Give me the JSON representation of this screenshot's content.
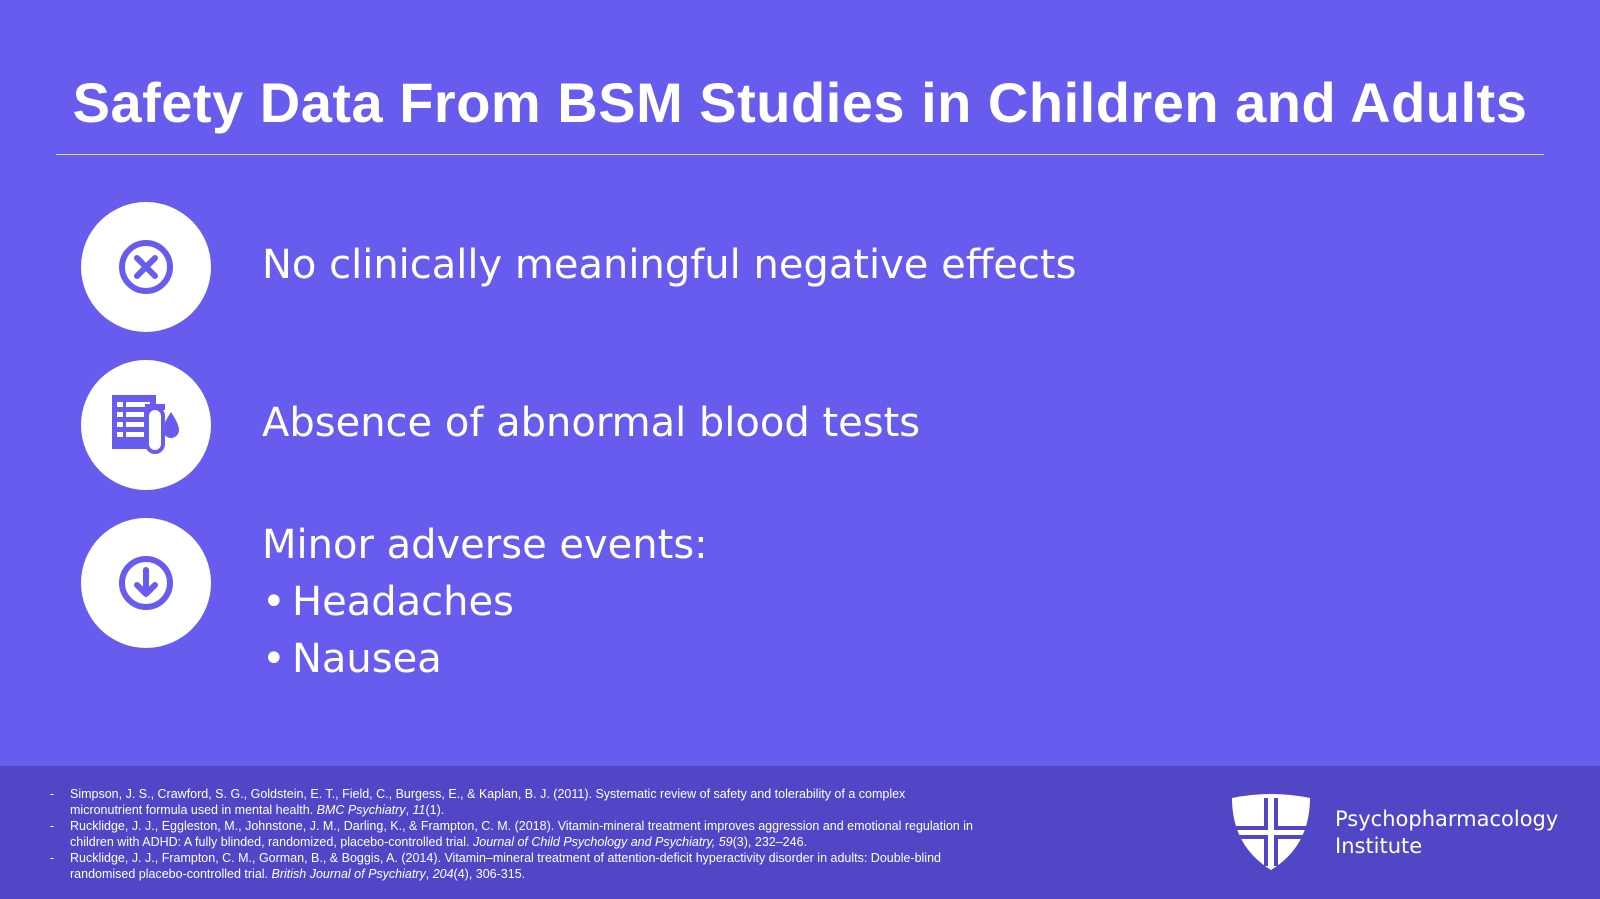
{
  "title": "Safety Data From BSM Studies in Children and Adults",
  "items": [
    {
      "text": "No clinically meaningful negative effects"
    },
    {
      "text": "Absence of abnormal blood tests"
    },
    {
      "text": "Minor adverse events:",
      "bullets": [
        "Headaches",
        "Nausea"
      ]
    }
  ],
  "references": [
    [
      {
        "text": "Simpson, J. S., Crawford, S. G., Goldstein, E. T., Field, C., Burgess, E., & Kaplan, B. J. (2011). Systematic review of safety and tolerability of a complex micronutrient formula used in mental health. ",
        "italic": false
      },
      {
        "text": "BMC Psychiatry",
        "italic": true
      },
      {
        "text": ", ",
        "italic": false
      },
      {
        "text": "11",
        "italic": true
      },
      {
        "text": "(1).",
        "italic": false
      }
    ],
    [
      {
        "text": "Rucklidge, J. J., Eggleston, M., Johnstone, J. M., Darling, K., & Frampton, C. M. (2018). Vitamin-mineral treatment improves aggression and emotional regulation in children with ADHD: A fully blinded, randomized, placebo-controlled trial. ",
        "italic": false
      },
      {
        "text": "Journal of Child Psychology and Psychiatry, 59",
        "italic": true
      },
      {
        "text": "(3), 232–246.",
        "italic": false
      }
    ],
    [
      {
        "text": "Rucklidge, J. J., Frampton, C. M., Gorman, B., & Boggis, A. (2014). Vitamin–mineral treatment of attention-deficit hyperactivity disorder in adults: Double-blind randomised placebo-controlled trial. ",
        "italic": false
      },
      {
        "text": "British Journal of Psychiatry",
        "italic": true
      },
      {
        "text": ", ",
        "italic": false
      },
      {
        "text": "204",
        "italic": true
      },
      {
        "text": "(4), 306-315.",
        "italic": false
      }
    ]
  ],
  "logo": {
    "line1": "Psychopharmacology",
    "line2": "Institute"
  }
}
